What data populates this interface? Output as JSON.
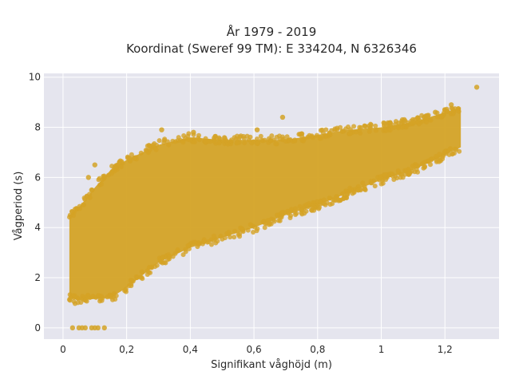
{
  "chart_data": {
    "type": "scatter",
    "title_line1": "År 1979 - 2019",
    "title_line2": "Koordinat (Sweref 99 TM): E 334204, N 6326346",
    "xlabel": "Signifikant våghöjd (m)",
    "ylabel": "Vågperiod (s)",
    "xlim": [
      -0.06,
      1.37
    ],
    "ylim": [
      -0.45,
      10.15
    ],
    "x_ticks": [
      0,
      0.2,
      0.4,
      0.6,
      0.8,
      1,
      1.2
    ],
    "x_tick_labels": [
      "0",
      "0,2",
      "0,4",
      "0,6",
      "0,8",
      "1",
      "1,2"
    ],
    "y_ticks": [
      0,
      2,
      4,
      6,
      8,
      10
    ],
    "y_tick_labels": [
      "0",
      "2",
      "4",
      "6",
      "8",
      "10"
    ],
    "grid": true,
    "marker_color": "#d4a326",
    "background_color": "#e5e5ee",
    "envelope": {
      "x": [
        0.02,
        0.05,
        0.1,
        0.15,
        0.2,
        0.3,
        0.4,
        0.5,
        0.6,
        0.7,
        0.8,
        0.9,
        1.0,
        1.1,
        1.2,
        1.25
      ],
      "y_min": [
        1.2,
        1.1,
        1.15,
        1.2,
        1.6,
        2.6,
        3.2,
        3.6,
        4.0,
        4.5,
        4.9,
        5.4,
        5.9,
        6.3,
        6.9,
        7.2
      ],
      "y_max": [
        4.5,
        4.8,
        5.6,
        6.3,
        6.7,
        7.3,
        7.6,
        7.5,
        7.5,
        7.5,
        7.7,
        7.9,
        8.0,
        8.2,
        8.6,
        8.8
      ]
    },
    "points": [
      {
        "x": 0.1,
        "y": 6.5
      },
      {
        "x": 0.09,
        "y": 5.5
      },
      {
        "x": 0.08,
        "y": 6.0
      },
      {
        "x": 0.31,
        "y": 7.9
      },
      {
        "x": 0.41,
        "y": 7.8
      },
      {
        "x": 0.61,
        "y": 7.9
      },
      {
        "x": 0.69,
        "y": 8.4
      },
      {
        "x": 1.17,
        "y": 8.6
      },
      {
        "x": 1.22,
        "y": 8.9
      },
      {
        "x": 1.3,
        "y": 9.6
      },
      {
        "x": 0.03,
        "y": 0
      },
      {
        "x": 0.05,
        "y": 0
      },
      {
        "x": 0.06,
        "y": 0
      },
      {
        "x": 0.07,
        "y": 0
      },
      {
        "x": 0.09,
        "y": 0
      },
      {
        "x": 0.1,
        "y": 0
      },
      {
        "x": 0.11,
        "y": 0
      },
      {
        "x": 0.13,
        "y": 0
      }
    ]
  }
}
